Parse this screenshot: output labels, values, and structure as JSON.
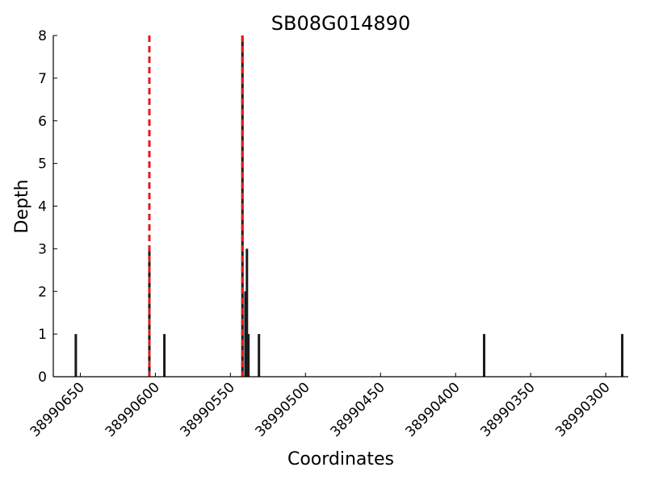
{
  "chart_data": {
    "type": "bar",
    "title": "SB08G014890",
    "xlabel": "Coordinates",
    "ylabel": "Depth",
    "x_axis_reversed": true,
    "xlim": [
      38990668,
      38990285
    ],
    "ylim": [
      0,
      8
    ],
    "xticks": [
      38990650,
      38990600,
      38990550,
      38990500,
      38990450,
      38990400,
      38990350,
      38990300
    ],
    "xtick_labels": [
      "38990650",
      "38990600",
      "38990550",
      "38990500",
      "38990450",
      "38990400",
      "38990350",
      "38990300"
    ],
    "yticks": [
      0,
      1,
      2,
      3,
      4,
      5,
      6,
      7,
      8
    ],
    "ytick_labels": [
      "0",
      "1",
      "2",
      "3",
      "4",
      "5",
      "6",
      "7",
      "8"
    ],
    "grid": false,
    "bar_color": "#1a1a1a",
    "marker_color": "#e31a1c",
    "series": [
      {
        "points": [
          {
            "x": 38990653,
            "y": 1
          },
          {
            "x": 38990604,
            "y": 3
          },
          {
            "x": 38990594,
            "y": 1
          },
          {
            "x": 38990542,
            "y": 8
          },
          {
            "x": 38990540,
            "y": 2
          },
          {
            "x": 38990539,
            "y": 3
          },
          {
            "x": 38990538,
            "y": 1
          },
          {
            "x": 38990531,
            "y": 1
          },
          {
            "x": 38990381,
            "y": 1
          },
          {
            "x": 38990289,
            "y": 1
          }
        ]
      }
    ],
    "vertical_markers": [
      {
        "x": 38990604,
        "style": "dashed",
        "color": "#e31a1c"
      },
      {
        "x": 38990542,
        "style": "dashed",
        "color": "#e31a1c"
      }
    ]
  }
}
